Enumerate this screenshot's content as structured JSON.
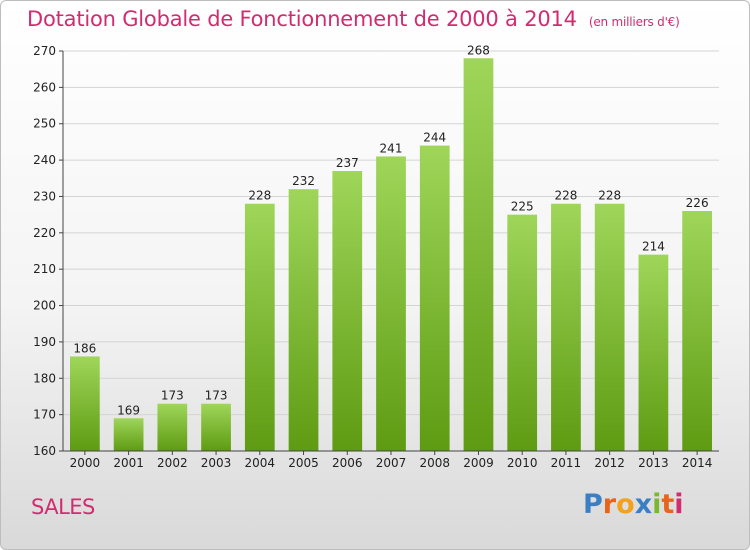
{
  "title": "Dotation Globale de Fonctionnement de 2000 à 2014",
  "subtitle": "(en milliers d'€)",
  "commune": "SALES",
  "logo": {
    "letters": [
      "P",
      "r",
      "o",
      "x",
      "i",
      "t",
      "i"
    ],
    "colors": [
      "#3a7fc4",
      "#e8641a",
      "#f2a21c",
      "#3a7fc4",
      "#7cb82f",
      "#e8641a",
      "#d22b6f"
    ]
  },
  "colors": {
    "bar_top": "#9fd65a",
    "bar_bottom": "#5e9b12",
    "title": "#d22b6f",
    "grid": "#d4d4d4"
  },
  "chart_data": {
    "type": "bar",
    "title": "Dotation Globale de Fonctionnement de 2000 à 2014",
    "subtitle": "(en milliers d'€)",
    "categories": [
      "2000",
      "2001",
      "2002",
      "2003",
      "2004",
      "2005",
      "2006",
      "2007",
      "2008",
      "2009",
      "2010",
      "2011",
      "2012",
      "2013",
      "2014"
    ],
    "values": [
      186,
      169,
      173,
      173,
      228,
      232,
      237,
      241,
      244,
      268,
      225,
      228,
      228,
      214,
      226
    ],
    "ylim": [
      160,
      270
    ],
    "yticks": [
      160,
      170,
      180,
      190,
      200,
      210,
      220,
      230,
      240,
      250,
      260,
      270
    ],
    "grid": true,
    "legend": "none"
  }
}
